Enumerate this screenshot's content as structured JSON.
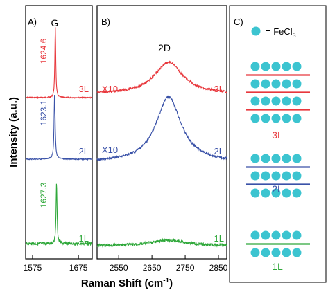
{
  "figure": {
    "ylabel": "Intensity (a.u.)",
    "xlabel": "Raman Shift (cm",
    "xlabel_sup": "-1",
    "xlabel_close": ")"
  },
  "colors": {
    "L3": "#e8383d",
    "L2": "#3a52a8",
    "L1": "#2fa83a",
    "fecl3": "#3cc4d0",
    "axis": "#000000"
  },
  "chart_data": [
    {
      "panel": "A)",
      "type": "line",
      "xlim": [
        1560,
        1705
      ],
      "xticks": [
        1575,
        1675
      ],
      "peak_label": "G",
      "series": [
        {
          "name": "3L",
          "color": "#e8383d",
          "peak_position": "1624.6",
          "peak_x": 1624.6
        },
        {
          "name": "2L",
          "color": "#3a52a8",
          "peak_position": "1623.1",
          "peak_x": 1623.1
        },
        {
          "name": "1L",
          "color": "#2fa83a",
          "peak_position": "1627.3",
          "peak_x": 1627.3
        }
      ]
    },
    {
      "panel": "B)",
      "type": "line",
      "xlim": [
        2485,
        2875
      ],
      "xticks": [
        2550,
        2650,
        2750,
        2850
      ],
      "peak_label": "2D",
      "series": [
        {
          "name": "3L",
          "color": "#e8383d",
          "multiplier": "X10",
          "peak_x": 2700
        },
        {
          "name": "2L",
          "color": "#3a52a8",
          "multiplier": "X10",
          "peak_x": 2700
        },
        {
          "name": "1L",
          "color": "#2fa83a",
          "peak_x": 2700
        }
      ]
    }
  ],
  "schematic": {
    "panel": "C)",
    "legend_eq": "= FeCl",
    "legend_sub": "3",
    "groups": [
      {
        "label": "3L",
        "layers": 3
      },
      {
        "label": "2L",
        "layers": 2
      },
      {
        "label": "1L",
        "layers": 1
      }
    ]
  }
}
